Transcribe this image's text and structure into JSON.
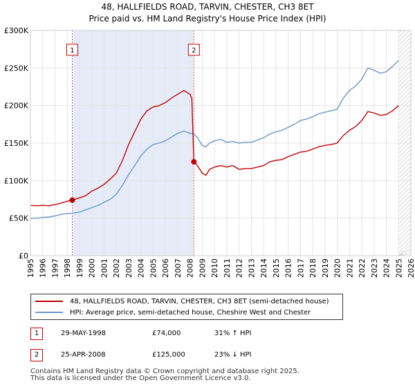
{
  "title_line1": "48, HALLFIELDS ROAD, TARVIN, CHESTER, CH3 8ET",
  "title_line2": "Price paid vs. HM Land Registry's House Price Index (HPI)",
  "chart_data": {
    "type": "line",
    "xlim": [
      1995,
      2026
    ],
    "ylim": [
      0,
      300000
    ],
    "x_ticks": [
      "1995",
      "1996",
      "1997",
      "1998",
      "1999",
      "2000",
      "2001",
      "2002",
      "2003",
      "2004",
      "2005",
      "2006",
      "2007",
      "2008",
      "2009",
      "2010",
      "2011",
      "2012",
      "2013",
      "2014",
      "2015",
      "2016",
      "2017",
      "2018",
      "2019",
      "2020",
      "2021",
      "2022",
      "2023",
      "2024",
      "2025",
      "2026"
    ],
    "y_ticks": [
      {
        "value": 0,
        "label": "£0"
      },
      {
        "value": 50000,
        "label": "£50K"
      },
      {
        "value": 100000,
        "label": "£100K"
      },
      {
        "value": 150000,
        "label": "£150K"
      },
      {
        "value": 200000,
        "label": "£200K"
      },
      {
        "value": 250000,
        "label": "£250K"
      },
      {
        "value": 300000,
        "label": "£300K"
      }
    ],
    "series": [
      {
        "name": "48, HALLFIELDS ROAD, TARVIN, CHESTER, CH3 8ET (semi-detached house)",
        "color": "#c00000",
        "points": [
          [
            1995.0,
            67000
          ],
          [
            1995.5,
            66500
          ],
          [
            1996.0,
            67000
          ],
          [
            1996.5,
            66500
          ],
          [
            1997.0,
            68000
          ],
          [
            1997.5,
            70000
          ],
          [
            1998.0,
            72500
          ],
          [
            1998.41,
            74000
          ],
          [
            1999.0,
            77000
          ],
          [
            1999.5,
            80000
          ],
          [
            2000.0,
            86000
          ],
          [
            2000.5,
            90000
          ],
          [
            2001.0,
            95000
          ],
          [
            2001.5,
            102000
          ],
          [
            2002.0,
            110000
          ],
          [
            2002.5,
            127000
          ],
          [
            2003.0,
            148000
          ],
          [
            2003.5,
            165000
          ],
          [
            2004.0,
            182000
          ],
          [
            2004.5,
            193000
          ],
          [
            2005.0,
            198000
          ],
          [
            2005.5,
            200000
          ],
          [
            2006.0,
            204000
          ],
          [
            2006.5,
            210000
          ],
          [
            2007.0,
            215000
          ],
          [
            2007.5,
            220000
          ],
          [
            2008.0,
            215000
          ],
          [
            2008.15,
            210000
          ],
          [
            2008.32,
            125000
          ],
          [
            2008.6,
            120000
          ],
          [
            2009.0,
            110000
          ],
          [
            2009.3,
            107000
          ],
          [
            2009.6,
            115000
          ],
          [
            2010.0,
            118000
          ],
          [
            2010.5,
            120000
          ],
          [
            2011.0,
            118000
          ],
          [
            2011.5,
            120000
          ],
          [
            2012.0,
            115000
          ],
          [
            2012.5,
            116000
          ],
          [
            2013.0,
            116000
          ],
          [
            2013.5,
            118000
          ],
          [
            2014.0,
            120000
          ],
          [
            2014.5,
            125000
          ],
          [
            2015.0,
            127000
          ],
          [
            2015.5,
            128000
          ],
          [
            2016.0,
            132000
          ],
          [
            2016.5,
            135000
          ],
          [
            2017.0,
            138000
          ],
          [
            2017.5,
            139000
          ],
          [
            2018.0,
            142000
          ],
          [
            2018.5,
            145000
          ],
          [
            2019.0,
            147000
          ],
          [
            2019.5,
            148000
          ],
          [
            2020.0,
            150000
          ],
          [
            2020.5,
            160000
          ],
          [
            2021.0,
            167000
          ],
          [
            2021.5,
            172000
          ],
          [
            2022.0,
            180000
          ],
          [
            2022.5,
            192000
          ],
          [
            2023.0,
            190000
          ],
          [
            2023.5,
            187000
          ],
          [
            2024.0,
            188000
          ],
          [
            2024.5,
            193000
          ],
          [
            2025.0,
            200000
          ]
        ]
      },
      {
        "name": "HPI: Average price, semi-detached house, Cheshire West and Chester",
        "color": "#6a96cc",
        "points": [
          [
            1995.0,
            50000
          ],
          [
            1995.5,
            50000
          ],
          [
            1996.0,
            51000
          ],
          [
            1996.5,
            51500
          ],
          [
            1997.0,
            53000
          ],
          [
            1997.5,
            55000
          ],
          [
            1998.0,
            56000
          ],
          [
            1998.41,
            56500
          ],
          [
            1999.0,
            58000
          ],
          [
            1999.5,
            61000
          ],
          [
            2000.0,
            64000
          ],
          [
            2000.5,
            67000
          ],
          [
            2001.0,
            71000
          ],
          [
            2001.5,
            75000
          ],
          [
            2002.0,
            82000
          ],
          [
            2002.5,
            94000
          ],
          [
            2003.0,
            108000
          ],
          [
            2003.5,
            120000
          ],
          [
            2004.0,
            133000
          ],
          [
            2004.5,
            142000
          ],
          [
            2005.0,
            148000
          ],
          [
            2005.5,
            150000
          ],
          [
            2006.0,
            153000
          ],
          [
            2006.5,
            158000
          ],
          [
            2007.0,
            163000
          ],
          [
            2007.5,
            166000
          ],
          [
            2008.0,
            163000
          ],
          [
            2008.32,
            162500
          ],
          [
            2008.6,
            157000
          ],
          [
            2009.0,
            147000
          ],
          [
            2009.3,
            145000
          ],
          [
            2009.6,
            150000
          ],
          [
            2010.0,
            153000
          ],
          [
            2010.5,
            155000
          ],
          [
            2011.0,
            151000
          ],
          [
            2011.5,
            152000
          ],
          [
            2012.0,
            150000
          ],
          [
            2012.5,
            151000
          ],
          [
            2013.0,
            151000
          ],
          [
            2013.5,
            154000
          ],
          [
            2014.0,
            157000
          ],
          [
            2014.5,
            162000
          ],
          [
            2015.0,
            165000
          ],
          [
            2015.5,
            167000
          ],
          [
            2016.0,
            171000
          ],
          [
            2016.5,
            175000
          ],
          [
            2017.0,
            180000
          ],
          [
            2017.5,
            182000
          ],
          [
            2018.0,
            185000
          ],
          [
            2018.5,
            189000
          ],
          [
            2019.0,
            191000
          ],
          [
            2019.5,
            193000
          ],
          [
            2020.0,
            195000
          ],
          [
            2020.5,
            210000
          ],
          [
            2021.0,
            220000
          ],
          [
            2021.5,
            226000
          ],
          [
            2022.0,
            235000
          ],
          [
            2022.5,
            250000
          ],
          [
            2023.0,
            247000
          ],
          [
            2023.5,
            243000
          ],
          [
            2024.0,
            245000
          ],
          [
            2024.5,
            252000
          ],
          [
            2025.0,
            260000
          ]
        ]
      }
    ],
    "markers": [
      {
        "label": "1",
        "x": 1998.41,
        "y": 74000
      },
      {
        "label": "2",
        "x": 2008.32,
        "y": 125000
      }
    ],
    "future_start": 2025.0
  },
  "legend": {
    "property_label": "48, HALLFIELDS ROAD, TARVIN, CHESTER, CH3 8ET (semi-detached house)",
    "hpi_label": "HPI: Average price, semi-detached house, Cheshire West and Chester"
  },
  "transactions": [
    {
      "num": "1",
      "date": "29-MAY-1998",
      "price": "£74,000",
      "hpi": "31% ↑ HPI"
    },
    {
      "num": "2",
      "date": "25-APR-2008",
      "price": "£125,000",
      "hpi": "23% ↓ HPI"
    }
  ],
  "footer_line1": "Contains HM Land Registry data © Crown copyright and database right 2025.",
  "footer_line2": "This data is licensed under the Open Government Licence v3.0.",
  "colors": {
    "property": "#c00000",
    "hpi": "#6a96cc",
    "shade": "#e5ecf8"
  }
}
